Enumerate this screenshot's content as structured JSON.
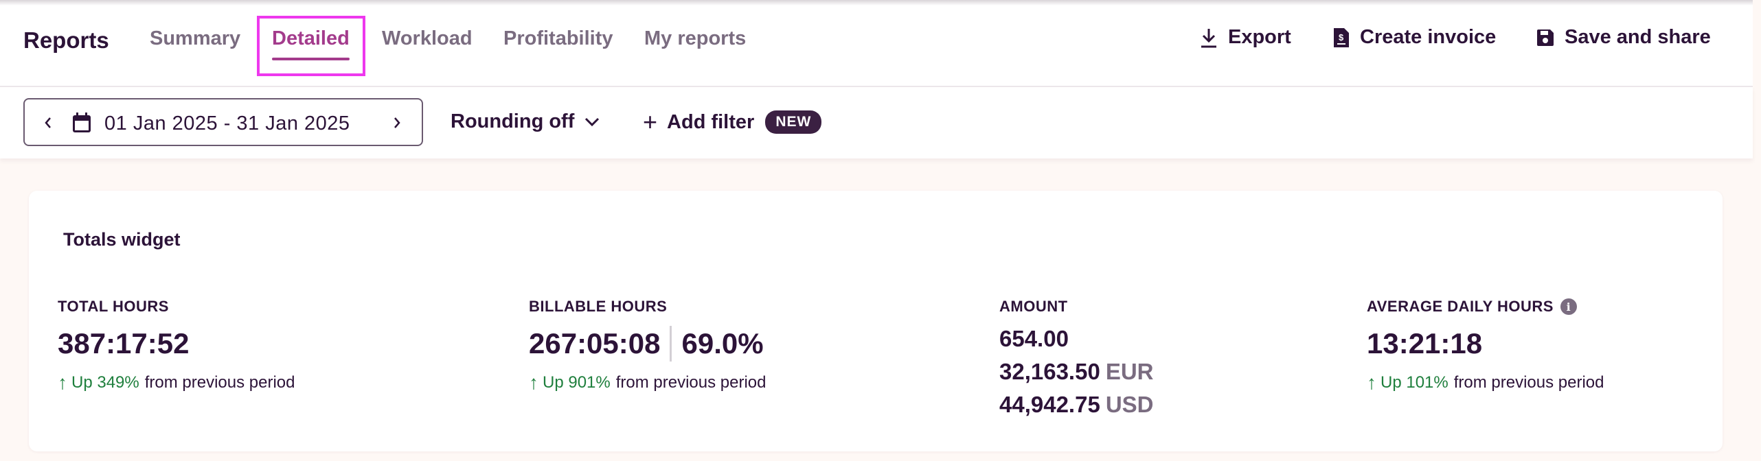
{
  "header": {
    "title": "Reports",
    "tabs": [
      {
        "label": "Summary"
      },
      {
        "label": "Detailed"
      },
      {
        "label": "Workload"
      },
      {
        "label": "Profitability"
      },
      {
        "label": "My reports"
      }
    ],
    "active_tab": "Detailed",
    "actions": {
      "export": "Export",
      "create_invoice": "Create invoice",
      "save_share": "Save and share"
    }
  },
  "filters": {
    "date_range": "01 Jan 2025 - 31 Jan 2025",
    "rounding": "Rounding off",
    "add_filter": "Add filter",
    "new_badge": "NEW"
  },
  "widget": {
    "title": "Totals widget",
    "total_hours": {
      "label": "TOTAL HOURS",
      "value": "387:17:52",
      "trend_up": "Up 349%",
      "trend_rest": "from previous period"
    },
    "billable_hours": {
      "label": "BILLABLE HOURS",
      "value": "267:05:08",
      "percent": "69.0%",
      "trend_up": "Up 901%",
      "trend_rest": "from previous period"
    },
    "amount": {
      "label": "AMOUNT",
      "lines": [
        {
          "value": "654.00",
          "currency": ""
        },
        {
          "value": "32,163.50",
          "currency": "EUR"
        },
        {
          "value": "44,942.75",
          "currency": "USD"
        }
      ]
    },
    "average_daily": {
      "label": "AVERAGE DAILY HOURS",
      "value": "13:21:18",
      "trend_up": "Up 101%",
      "trend_rest": "from previous period"
    }
  },
  "colors": {
    "accent": "#a33b8c",
    "text": "#2c1338",
    "positive": "#1f7f3d",
    "highlight": "#ee38ee"
  }
}
